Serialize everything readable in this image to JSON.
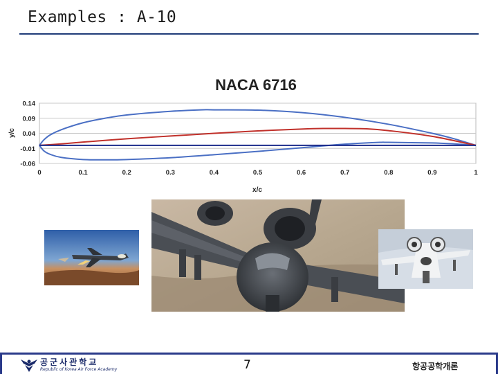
{
  "slide": {
    "title": "Examples : A-10"
  },
  "chart_data": {
    "type": "line",
    "title": "NACA 6716",
    "xlabel": "x/c",
    "ylabel": "y/c",
    "xlim": [
      0,
      1
    ],
    "ylim": [
      -0.06,
      0.14
    ],
    "x_ticks": [
      "0",
      "0.1",
      "0.2",
      "0.3",
      "0.4",
      "0.5",
      "0.6",
      "0.7",
      "0.8",
      "0.9",
      "1"
    ],
    "y_ticks": [
      "0.14",
      "0.09",
      "0.04",
      "-0.01",
      "-0.06"
    ],
    "grid": true,
    "legend": "none",
    "series": [
      {
        "color": "#4a6fc4",
        "x": [
          0,
          0.01,
          0.025,
          0.05,
          0.1,
          0.15,
          0.2,
          0.3,
          0.37,
          0.4,
          0.5,
          0.6,
          0.7,
          0.8,
          0.9,
          0.95,
          1.0
        ],
        "y": [
          0.0,
          0.018,
          0.035,
          0.052,
          0.075,
          0.09,
          0.101,
          0.113,
          0.118,
          0.118,
          0.117,
          0.109,
          0.093,
          0.07,
          0.04,
          0.022,
          0.0
        ]
      },
      {
        "color": "#4a6fc4",
        "x": [
          0,
          0.01,
          0.025,
          0.05,
          0.1,
          0.15,
          0.2,
          0.3,
          0.4,
          0.5,
          0.6,
          0.7,
          0.78,
          0.8,
          0.9,
          0.95,
          1.0
        ],
        "y": [
          0.0,
          -0.018,
          -0.03,
          -0.04,
          -0.047,
          -0.048,
          -0.047,
          -0.041,
          -0.031,
          -0.02,
          -0.008,
          0.004,
          0.01,
          0.01,
          0.008,
          0.005,
          0.0
        ]
      },
      {
        "color": "#c0302a",
        "x": [
          0,
          0.05,
          0.1,
          0.2,
          0.3,
          0.4,
          0.5,
          0.6,
          0.65,
          0.7,
          0.75,
          0.8,
          0.9,
          1.0
        ],
        "y": [
          0.0,
          0.005,
          0.011,
          0.022,
          0.031,
          0.04,
          0.048,
          0.054,
          0.056,
          0.056,
          0.055,
          0.049,
          0.03,
          0.0
        ]
      },
      {
        "color": "#1a2a8a",
        "x": [
          0,
          1
        ],
        "y": [
          0.0,
          0.0
        ]
      }
    ]
  },
  "footer": {
    "school_name": "공군사관학교",
    "school_subtitle": "Republic of Korea Air Force Academy",
    "page_number": "7",
    "course_name": "항공공학개론"
  },
  "images": {
    "left_photo": "A-10 firing over desert",
    "center_photo": "A-10 front close-up over desert",
    "right_photo": "A-10 in flight, sky background"
  }
}
